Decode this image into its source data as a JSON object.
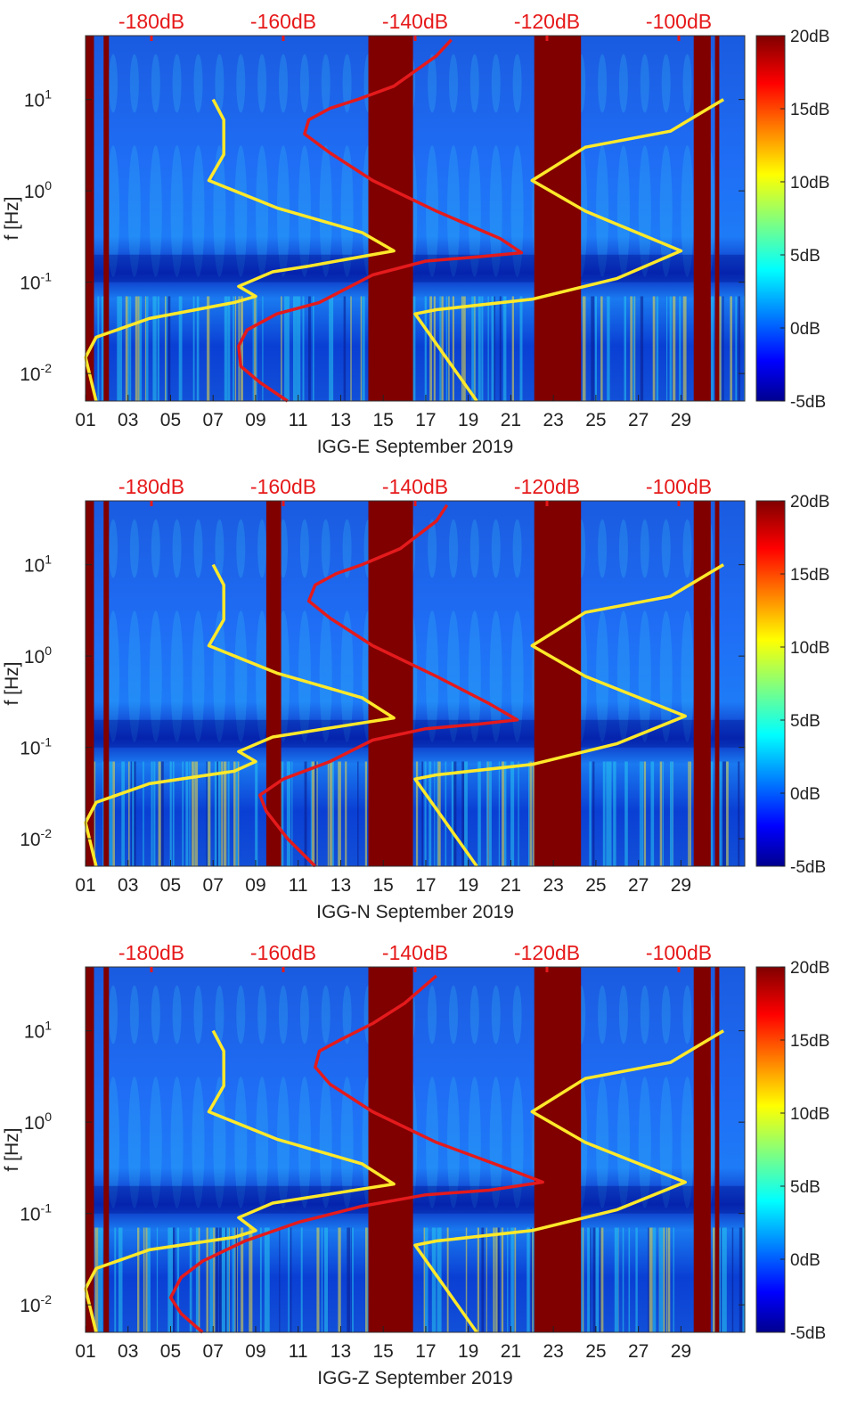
{
  "colors": {
    "top_axis_label": "#e6191a",
    "red_line": "#e41a1c",
    "yellow_line": "#ffe92a",
    "masked_band": "#800000",
    "axis_text": "#222222"
  },
  "chart_data": [
    {
      "type": "heatmap",
      "title": "IGG-E September 2019",
      "xlabel": "IGG-E September 2019",
      "ylabel": "f [Hz]",
      "yscale": "log",
      "ylim": [
        0.005,
        50
      ],
      "xlim": [
        1,
        32
      ],
      "x_tick_labels": [
        "01",
        "03",
        "05",
        "07",
        "09",
        "11",
        "13",
        "15",
        "17",
        "19",
        "21",
        "23",
        "25",
        "27",
        "29"
      ],
      "x_tick_values": [
        1,
        3,
        5,
        7,
        9,
        11,
        13,
        15,
        17,
        19,
        21,
        23,
        25,
        27,
        29
      ],
      "y_tick_labels": [
        {
          "base": "10",
          "exp": "-2"
        },
        {
          "base": "10",
          "exp": "-1"
        },
        {
          "base": "10",
          "exp": "0"
        },
        {
          "base": "10",
          "exp": "1"
        }
      ],
      "y_tick_values": [
        0.01,
        0.1,
        1,
        10
      ],
      "top_axis_labels": [
        "-180dB",
        "-160dB",
        "-140dB",
        "-120dB",
        "-100dB"
      ],
      "top_axis_values": [
        -180,
        -160,
        -140,
        -120,
        -100
      ],
      "colorbar": {
        "labels": [
          "20dB",
          "15dB",
          "10dB",
          "5dB",
          "0dB",
          "-5dB"
        ],
        "values": [
          20,
          15,
          10,
          5,
          0,
          -5
        ],
        "range": [
          -5,
          20
        ]
      },
      "masked_days": [
        [
          1.0,
          1.4
        ],
        [
          1.85,
          2.1
        ],
        [
          14.3,
          16.4
        ],
        [
          22.1,
          24.3
        ],
        [
          29.6,
          30.4
        ],
        [
          30.6,
          30.8
        ]
      ],
      "series": [
        {
          "name": "red",
          "points": [
            [
              10.5,
              0.005
            ],
            [
              9.2,
              0.008
            ],
            [
              8.3,
              0.012
            ],
            [
              8.2,
              0.02
            ],
            [
              8.6,
              0.03
            ],
            [
              10.0,
              0.045
            ],
            [
              12.0,
              0.06
            ],
            [
              14.5,
              0.12
            ],
            [
              17.0,
              0.17
            ],
            [
              19.5,
              0.19
            ],
            [
              21.5,
              0.21
            ],
            [
              20.5,
              0.3
            ],
            [
              17.5,
              0.6
            ],
            [
              14.5,
              1.3
            ],
            [
              12.5,
              2.6
            ],
            [
              11.3,
              4.2
            ],
            [
              11.5,
              6.0
            ],
            [
              12.5,
              8.0
            ],
            [
              13.8,
              10.0
            ],
            [
              15.5,
              14.0
            ],
            [
              17.5,
              30.0
            ],
            [
              18.2,
              45.0
            ]
          ]
        },
        {
          "name": "yellow",
          "points": [
            [
              1.5,
              0.005
            ],
            [
              1.0,
              0.015
            ],
            [
              1.5,
              0.025
            ],
            [
              4.0,
              0.04
            ],
            [
              8.0,
              0.06
            ],
            [
              9.0,
              0.07
            ],
            [
              8.2,
              0.09
            ],
            [
              9.8,
              0.13
            ],
            [
              11.5,
              0.15
            ],
            [
              15.5,
              0.22
            ],
            [
              14.0,
              0.35
            ],
            [
              10.0,
              0.65
            ],
            [
              6.8,
              1.3
            ],
            [
              7.5,
              2.5
            ],
            [
              7.5,
              6.0
            ],
            [
              7.0,
              10.0
            ],
            [
              null,
              null
            ],
            [
              19.4,
              0.005
            ],
            [
              16.5,
              0.045
            ],
            [
              17.5,
              0.05
            ],
            [
              22.0,
              0.065
            ],
            [
              26.0,
              0.11
            ],
            [
              29.0,
              0.22
            ],
            [
              24.5,
              0.6
            ],
            [
              22.0,
              1.3
            ],
            [
              24.5,
              3.0
            ],
            [
              28.5,
              4.5
            ],
            [
              31.0,
              10.0
            ]
          ]
        }
      ]
    },
    {
      "type": "heatmap",
      "title": "IGG-N September 2019",
      "xlabel": "IGG-N September 2019",
      "ylabel": "f [Hz]",
      "yscale": "log",
      "ylim": [
        0.005,
        50
      ],
      "xlim": [
        1,
        32
      ],
      "x_tick_labels": [
        "01",
        "03",
        "05",
        "07",
        "09",
        "11",
        "13",
        "15",
        "17",
        "19",
        "21",
        "23",
        "25",
        "27",
        "29"
      ],
      "x_tick_values": [
        1,
        3,
        5,
        7,
        9,
        11,
        13,
        15,
        17,
        19,
        21,
        23,
        25,
        27,
        29
      ],
      "y_tick_labels": [
        {
          "base": "10",
          "exp": "-2"
        },
        {
          "base": "10",
          "exp": "-1"
        },
        {
          "base": "10",
          "exp": "0"
        },
        {
          "base": "10",
          "exp": "1"
        }
      ],
      "y_tick_values": [
        0.01,
        0.1,
        1,
        10
      ],
      "top_axis_labels": [
        "-180dB",
        "-160dB",
        "-140dB",
        "-120dB",
        "-100dB"
      ],
      "top_axis_values": [
        -180,
        -160,
        -140,
        -120,
        -100
      ],
      "colorbar": {
        "labels": [
          "20dB",
          "15dB",
          "10dB",
          "5dB",
          "0dB",
          "-5dB"
        ],
        "values": [
          20,
          15,
          10,
          5,
          0,
          -5
        ],
        "range": [
          -5,
          20
        ]
      },
      "masked_days": [
        [
          1.0,
          1.4
        ],
        [
          1.85,
          2.1
        ],
        [
          9.5,
          10.2
        ],
        [
          14.3,
          16.4
        ],
        [
          22.1,
          24.3
        ],
        [
          29.6,
          30.4
        ],
        [
          30.6,
          30.8
        ]
      ],
      "series": [
        {
          "name": "red",
          "points": [
            [
              11.8,
              0.005
            ],
            [
              10.5,
              0.01
            ],
            [
              9.5,
              0.02
            ],
            [
              9.2,
              0.03
            ],
            [
              10.3,
              0.045
            ],
            [
              12.5,
              0.07
            ],
            [
              14.5,
              0.12
            ],
            [
              17.0,
              0.16
            ],
            [
              19.5,
              0.18
            ],
            [
              21.3,
              0.2
            ],
            [
              20.0,
              0.3
            ],
            [
              17.5,
              0.6
            ],
            [
              14.5,
              1.3
            ],
            [
              12.5,
              2.6
            ],
            [
              11.5,
              4.0
            ],
            [
              11.8,
              6.0
            ],
            [
              12.8,
              8.0
            ],
            [
              14.0,
              10.0
            ],
            [
              15.8,
              15.0
            ],
            [
              17.5,
              30.0
            ],
            [
              18.0,
              45.0
            ]
          ]
        },
        {
          "name": "yellow",
          "points": [
            [
              1.5,
              0.005
            ],
            [
              1.0,
              0.015
            ],
            [
              1.5,
              0.025
            ],
            [
              4.0,
              0.04
            ],
            [
              8.0,
              0.055
            ],
            [
              9.0,
              0.07
            ],
            [
              8.2,
              0.09
            ],
            [
              9.8,
              0.13
            ],
            [
              11.5,
              0.15
            ],
            [
              15.5,
              0.21
            ],
            [
              14.0,
              0.35
            ],
            [
              10.0,
              0.65
            ],
            [
              6.8,
              1.3
            ],
            [
              7.5,
              2.5
            ],
            [
              7.5,
              6.0
            ],
            [
              7.0,
              10.0
            ],
            [
              null,
              null
            ],
            [
              19.4,
              0.005
            ],
            [
              16.5,
              0.045
            ],
            [
              17.5,
              0.05
            ],
            [
              22.0,
              0.065
            ],
            [
              26.0,
              0.11
            ],
            [
              29.2,
              0.22
            ],
            [
              24.5,
              0.6
            ],
            [
              22.0,
              1.3
            ],
            [
              24.5,
              3.0
            ],
            [
              28.5,
              4.5
            ],
            [
              31.0,
              10.0
            ]
          ]
        }
      ]
    },
    {
      "type": "heatmap",
      "title": "IGG-Z September 2019",
      "xlabel": "IGG-Z September 2019",
      "ylabel": "f [Hz]",
      "yscale": "log",
      "ylim": [
        0.005,
        50
      ],
      "xlim": [
        1,
        32
      ],
      "x_tick_labels": [
        "01",
        "03",
        "05",
        "07",
        "09",
        "11",
        "13",
        "15",
        "17",
        "19",
        "21",
        "23",
        "25",
        "27",
        "29"
      ],
      "x_tick_values": [
        1,
        3,
        5,
        7,
        9,
        11,
        13,
        15,
        17,
        19,
        21,
        23,
        25,
        27,
        29
      ],
      "y_tick_labels": [
        {
          "base": "10",
          "exp": "-2"
        },
        {
          "base": "10",
          "exp": "-1"
        },
        {
          "base": "10",
          "exp": "0"
        },
        {
          "base": "10",
          "exp": "1"
        }
      ],
      "y_tick_values": [
        0.01,
        0.1,
        1,
        10
      ],
      "top_axis_labels": [
        "-180dB",
        "-160dB",
        "-140dB",
        "-120dB",
        "-100dB"
      ],
      "top_axis_values": [
        -180,
        -160,
        -140,
        -120,
        -100
      ],
      "colorbar": {
        "labels": [
          "20dB",
          "15dB",
          "10dB",
          "5dB",
          "0dB",
          "-5dB"
        ],
        "values": [
          20,
          15,
          10,
          5,
          0,
          -5
        ],
        "range": [
          -5,
          20
        ]
      },
      "masked_days": [
        [
          1.0,
          1.4
        ],
        [
          1.85,
          2.1
        ],
        [
          14.3,
          16.4
        ],
        [
          22.1,
          24.3
        ],
        [
          29.6,
          30.4
        ],
        [
          30.6,
          30.8
        ]
      ],
      "series": [
        {
          "name": "red",
          "points": [
            [
              6.5,
              0.005
            ],
            [
              5.5,
              0.008
            ],
            [
              5.0,
              0.012
            ],
            [
              5.5,
              0.02
            ],
            [
              6.5,
              0.03
            ],
            [
              8.5,
              0.05
            ],
            [
              11.0,
              0.08
            ],
            [
              14.0,
              0.12
            ],
            [
              17.0,
              0.16
            ],
            [
              20.0,
              0.18
            ],
            [
              22.5,
              0.22
            ],
            [
              21.0,
              0.3
            ],
            [
              17.5,
              0.6
            ],
            [
              14.5,
              1.3
            ],
            [
              12.5,
              2.6
            ],
            [
              11.8,
              4.0
            ],
            [
              12.0,
              6.0
            ],
            [
              13.0,
              8.0
            ],
            [
              14.5,
              12.0
            ],
            [
              16.0,
              20.0
            ],
            [
              17.5,
              40.0
            ]
          ]
        },
        {
          "name": "yellow",
          "points": [
            [
              1.5,
              0.005
            ],
            [
              1.0,
              0.015
            ],
            [
              1.5,
              0.025
            ],
            [
              4.0,
              0.04
            ],
            [
              8.0,
              0.055
            ],
            [
              9.0,
              0.065
            ],
            [
              8.2,
              0.09
            ],
            [
              9.8,
              0.13
            ],
            [
              11.5,
              0.15
            ],
            [
              15.5,
              0.21
            ],
            [
              14.0,
              0.35
            ],
            [
              10.0,
              0.65
            ],
            [
              6.8,
              1.3
            ],
            [
              7.5,
              2.5
            ],
            [
              7.5,
              6.0
            ],
            [
              7.0,
              10.0
            ],
            [
              null,
              null
            ],
            [
              19.4,
              0.005
            ],
            [
              16.5,
              0.045
            ],
            [
              17.5,
              0.05
            ],
            [
              22.0,
              0.065
            ],
            [
              26.0,
              0.11
            ],
            [
              29.2,
              0.22
            ],
            [
              24.5,
              0.6
            ],
            [
              22.0,
              1.3
            ],
            [
              24.5,
              3.0
            ],
            [
              28.5,
              4.5
            ],
            [
              31.0,
              10.0
            ]
          ]
        }
      ]
    }
  ]
}
